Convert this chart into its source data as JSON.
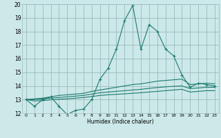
{
  "xlabel": "Humidex (Indice chaleur)",
  "bg_color": "#cce8e8",
  "grid_color": "#99bbbb",
  "line_color": "#1a7a6e",
  "xlim": [
    -0.5,
    23.5
  ],
  "ylim": [
    12,
    20
  ],
  "yticks": [
    12,
    13,
    14,
    15,
    16,
    17,
    18,
    19,
    20
  ],
  "xticks": [
    0,
    1,
    2,
    3,
    4,
    5,
    6,
    7,
    8,
    9,
    10,
    11,
    12,
    13,
    14,
    15,
    16,
    17,
    18,
    19,
    20,
    21,
    22,
    23
  ],
  "series": [
    [
      13.0,
      12.5,
      13.0,
      13.2,
      12.5,
      11.9,
      12.2,
      12.3,
      13.0,
      14.5,
      15.3,
      16.7,
      18.8,
      19.9,
      16.7,
      18.5,
      18.0,
      16.7,
      16.2,
      14.8,
      13.9,
      14.2,
      14.1,
      14.0
    ],
    [
      13.0,
      13.05,
      13.1,
      13.2,
      13.3,
      13.35,
      13.4,
      13.45,
      13.6,
      13.7,
      13.8,
      13.9,
      14.0,
      14.1,
      14.15,
      14.25,
      14.35,
      14.4,
      14.45,
      14.5,
      14.1,
      14.15,
      14.2,
      14.15
    ],
    [
      13.0,
      13.0,
      13.05,
      13.1,
      13.15,
      13.2,
      13.25,
      13.3,
      13.4,
      13.5,
      13.55,
      13.6,
      13.65,
      13.7,
      13.75,
      13.82,
      13.88,
      13.93,
      13.97,
      14.0,
      13.8,
      13.85,
      13.9,
      13.9
    ],
    [
      13.0,
      12.9,
      12.92,
      12.98,
      13.02,
      13.05,
      13.1,
      13.15,
      13.22,
      13.3,
      13.35,
      13.38,
      13.42,
      13.46,
      13.5,
      13.55,
      13.6,
      13.65,
      13.7,
      13.75,
      13.55,
      13.6,
      13.65,
      13.65
    ]
  ]
}
